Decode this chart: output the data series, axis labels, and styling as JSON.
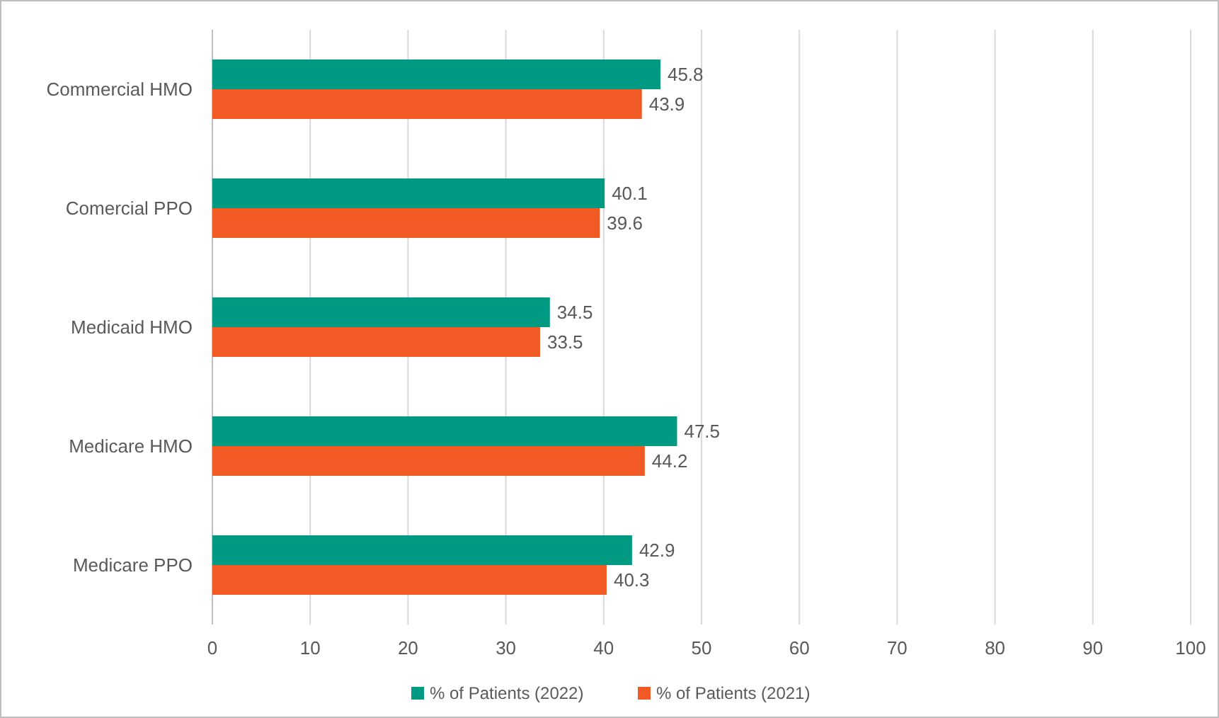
{
  "chart_data": {
    "type": "bar",
    "orientation": "horizontal",
    "categories": [
      "Commercial HMO",
      "Comercial PPO",
      "Medicaid HMO",
      "Medicare HMO",
      "Medicare PPO"
    ],
    "series": [
      {
        "name": "% of Patients (2022)",
        "color": "#009982",
        "values": [
          45.8,
          40.1,
          34.5,
          47.5,
          42.9
        ]
      },
      {
        "name": "% of Patients (2021)",
        "color": "#f15a24",
        "values": [
          43.9,
          39.6,
          33.5,
          44.2,
          40.3
        ]
      }
    ],
    "xlim": [
      0,
      100
    ],
    "xticks": [
      0,
      10,
      20,
      30,
      40,
      50,
      60,
      70,
      80,
      90,
      100
    ],
    "grid": "x",
    "legend": "bottom",
    "data_labels": true
  }
}
